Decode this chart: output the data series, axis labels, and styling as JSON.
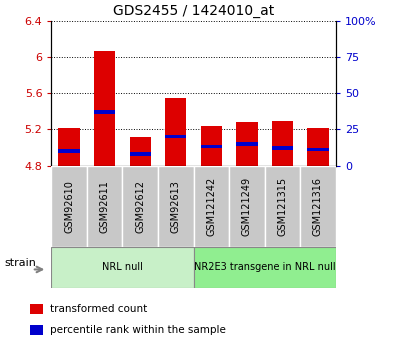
{
  "title": "GDS2455 / 1424010_at",
  "samples": [
    "GSM92610",
    "GSM92611",
    "GSM92612",
    "GSM92613",
    "GSM121242",
    "GSM121249",
    "GSM121315",
    "GSM121316"
  ],
  "transformed_counts": [
    5.22,
    6.07,
    5.12,
    5.55,
    5.24,
    5.28,
    5.29,
    5.22
  ],
  "percentile_ranks": [
    10,
    37,
    8,
    20,
    13,
    15,
    12,
    11
  ],
  "ylim_left": [
    4.8,
    6.4
  ],
  "ylim_right": [
    0,
    100
  ],
  "yticks_left": [
    4.8,
    5.2,
    5.6,
    6.0,
    6.4
  ],
  "yticks_right": [
    0,
    25,
    50,
    75,
    100
  ],
  "ytick_labels_left": [
    "4.8",
    "5.2",
    "5.6",
    "6",
    "6.4"
  ],
  "ytick_labels_right": [
    "0",
    "25",
    "50",
    "75",
    "100%"
  ],
  "bar_bottom": 4.8,
  "bar_color_red": "#dd0000",
  "bar_color_blue": "#0000cc",
  "groups": [
    {
      "label": "NRL null",
      "start": 0,
      "end": 4,
      "color": "#c8f0c8"
    },
    {
      "label": "NR2E3 transgene in NRL null",
      "start": 4,
      "end": 8,
      "color": "#90ee90"
    }
  ],
  "strain_label": "strain",
  "legend_items": [
    {
      "label": "transformed count",
      "color": "#dd0000"
    },
    {
      "label": "percentile rank within the sample",
      "color": "#0000cc"
    }
  ],
  "grid_color": "#000000",
  "tick_color_left": "#cc0000",
  "tick_color_right": "#0000cc",
  "bar_width": 0.6,
  "sample_box_color": "#c8c8c8",
  "sample_box_edge": "#ffffff"
}
